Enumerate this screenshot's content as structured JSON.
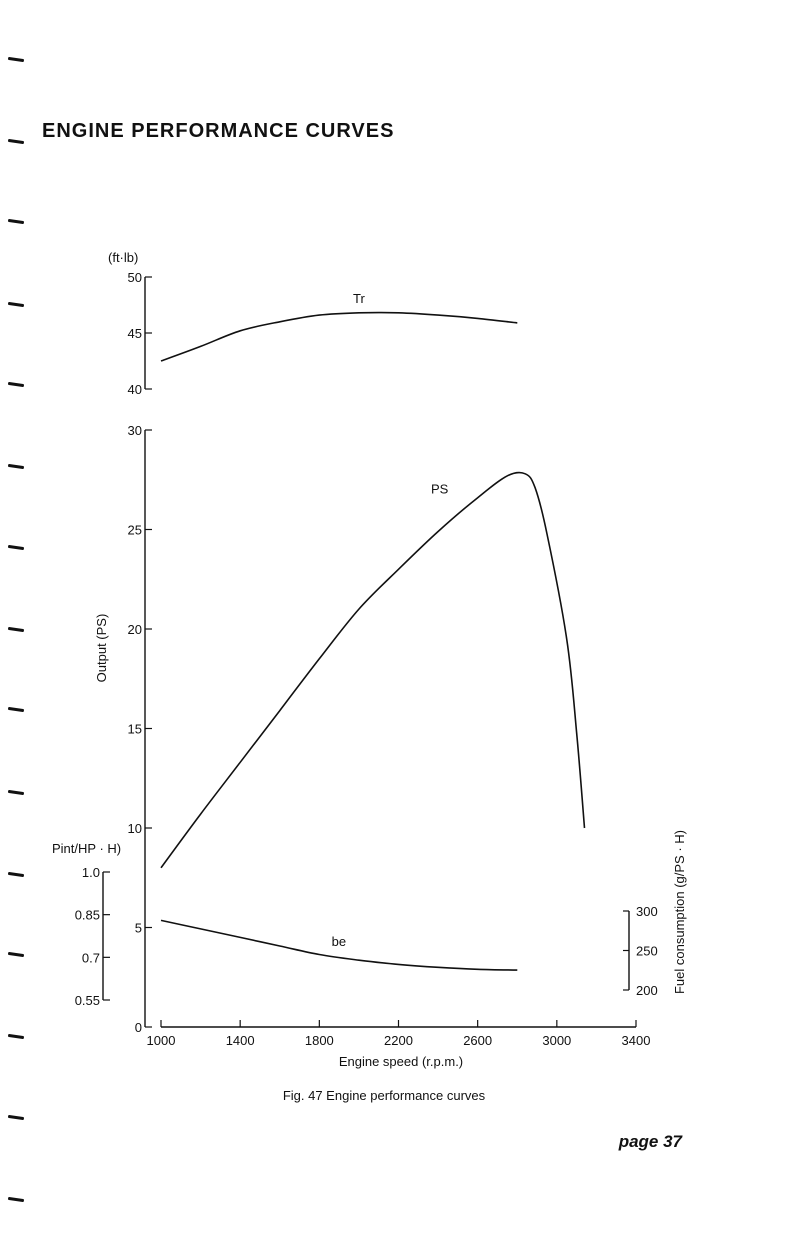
{
  "page": {
    "title": "ENGINE PERFORMANCE CURVES",
    "caption": "Fig. 47   Engine performance curves",
    "page_number": "page 37"
  },
  "chart_data": {
    "type": "line",
    "title": "",
    "xlabel": "Engine speed (r.p.m.)",
    "x_ticks": [
      1000,
      1400,
      1800,
      2200,
      2600,
      3000,
      3400
    ],
    "xlim": [
      1000,
      3400
    ],
    "color": "#111111",
    "axes": {
      "torque": {
        "unit_label": "(ft·lb)",
        "ylim": [
          40,
          50
        ],
        "ticks": [
          {
            "v": 50,
            "t": "50"
          },
          {
            "v": 45,
            "t": "45"
          },
          {
            "v": 40,
            "t": "40"
          }
        ]
      },
      "output": {
        "ylabel": "Output (PS)",
        "ylim": [
          0,
          30
        ],
        "ticks": [
          {
            "v": 30,
            "t": "30"
          },
          {
            "v": 25,
            "t": "25"
          },
          {
            "v": 20,
            "t": "20"
          },
          {
            "v": 15,
            "t": "15"
          },
          {
            "v": 10,
            "t": "10"
          },
          {
            "v": 5,
            "t": "5"
          },
          {
            "v": 0,
            "t": "0"
          }
        ]
      },
      "pint": {
        "unit_label": "Pint/HP · H)",
        "ylim": [
          0.55,
          1.0
        ],
        "ticks": [
          {
            "v": 1.0,
            "t": "1.0"
          },
          {
            "v": 0.85,
            "t": "0.85"
          },
          {
            "v": 0.7,
            "t": "0.7"
          },
          {
            "v": 0.55,
            "t": "0.55"
          }
        ]
      },
      "fuel": {
        "ylabel": "Fuel consumption (g/PS · H)",
        "ylim": [
          200,
          300
        ],
        "ticks": [
          {
            "v": 300,
            "t": "300"
          },
          {
            "v": 250,
            "t": "250"
          },
          {
            "v": 200,
            "t": "200"
          }
        ]
      }
    },
    "series": [
      {
        "name": "Tr",
        "axis": "torque",
        "x": [
          1000,
          1200,
          1400,
          1600,
          1800,
          2000,
          2200,
          2400,
          2600,
          2800
        ],
        "y": [
          42.5,
          43.8,
          45.2,
          46.0,
          46.6,
          46.8,
          46.8,
          46.6,
          46.3,
          45.9
        ]
      },
      {
        "name": "PS",
        "axis": "output",
        "x": [
          1000,
          1200,
          1400,
          1600,
          1800,
          2000,
          2200,
          2400,
          2600,
          2750,
          2840,
          2890,
          2950,
          3050,
          3100,
          3140
        ],
        "y": [
          8.0,
          10.7,
          13.3,
          15.9,
          18.5,
          21.0,
          23.0,
          24.9,
          26.6,
          27.7,
          27.8,
          27.1,
          24.8,
          19.5,
          14.8,
          10.0
        ]
      },
      {
        "name": "be",
        "axis": "pint",
        "x": [
          1000,
          1200,
          1400,
          1600,
          1800,
          2000,
          2200,
          2400,
          2600,
          2800
        ],
        "y": [
          0.83,
          0.8,
          0.77,
          0.74,
          0.71,
          0.69,
          0.675,
          0.665,
          0.658,
          0.655
        ]
      }
    ]
  }
}
